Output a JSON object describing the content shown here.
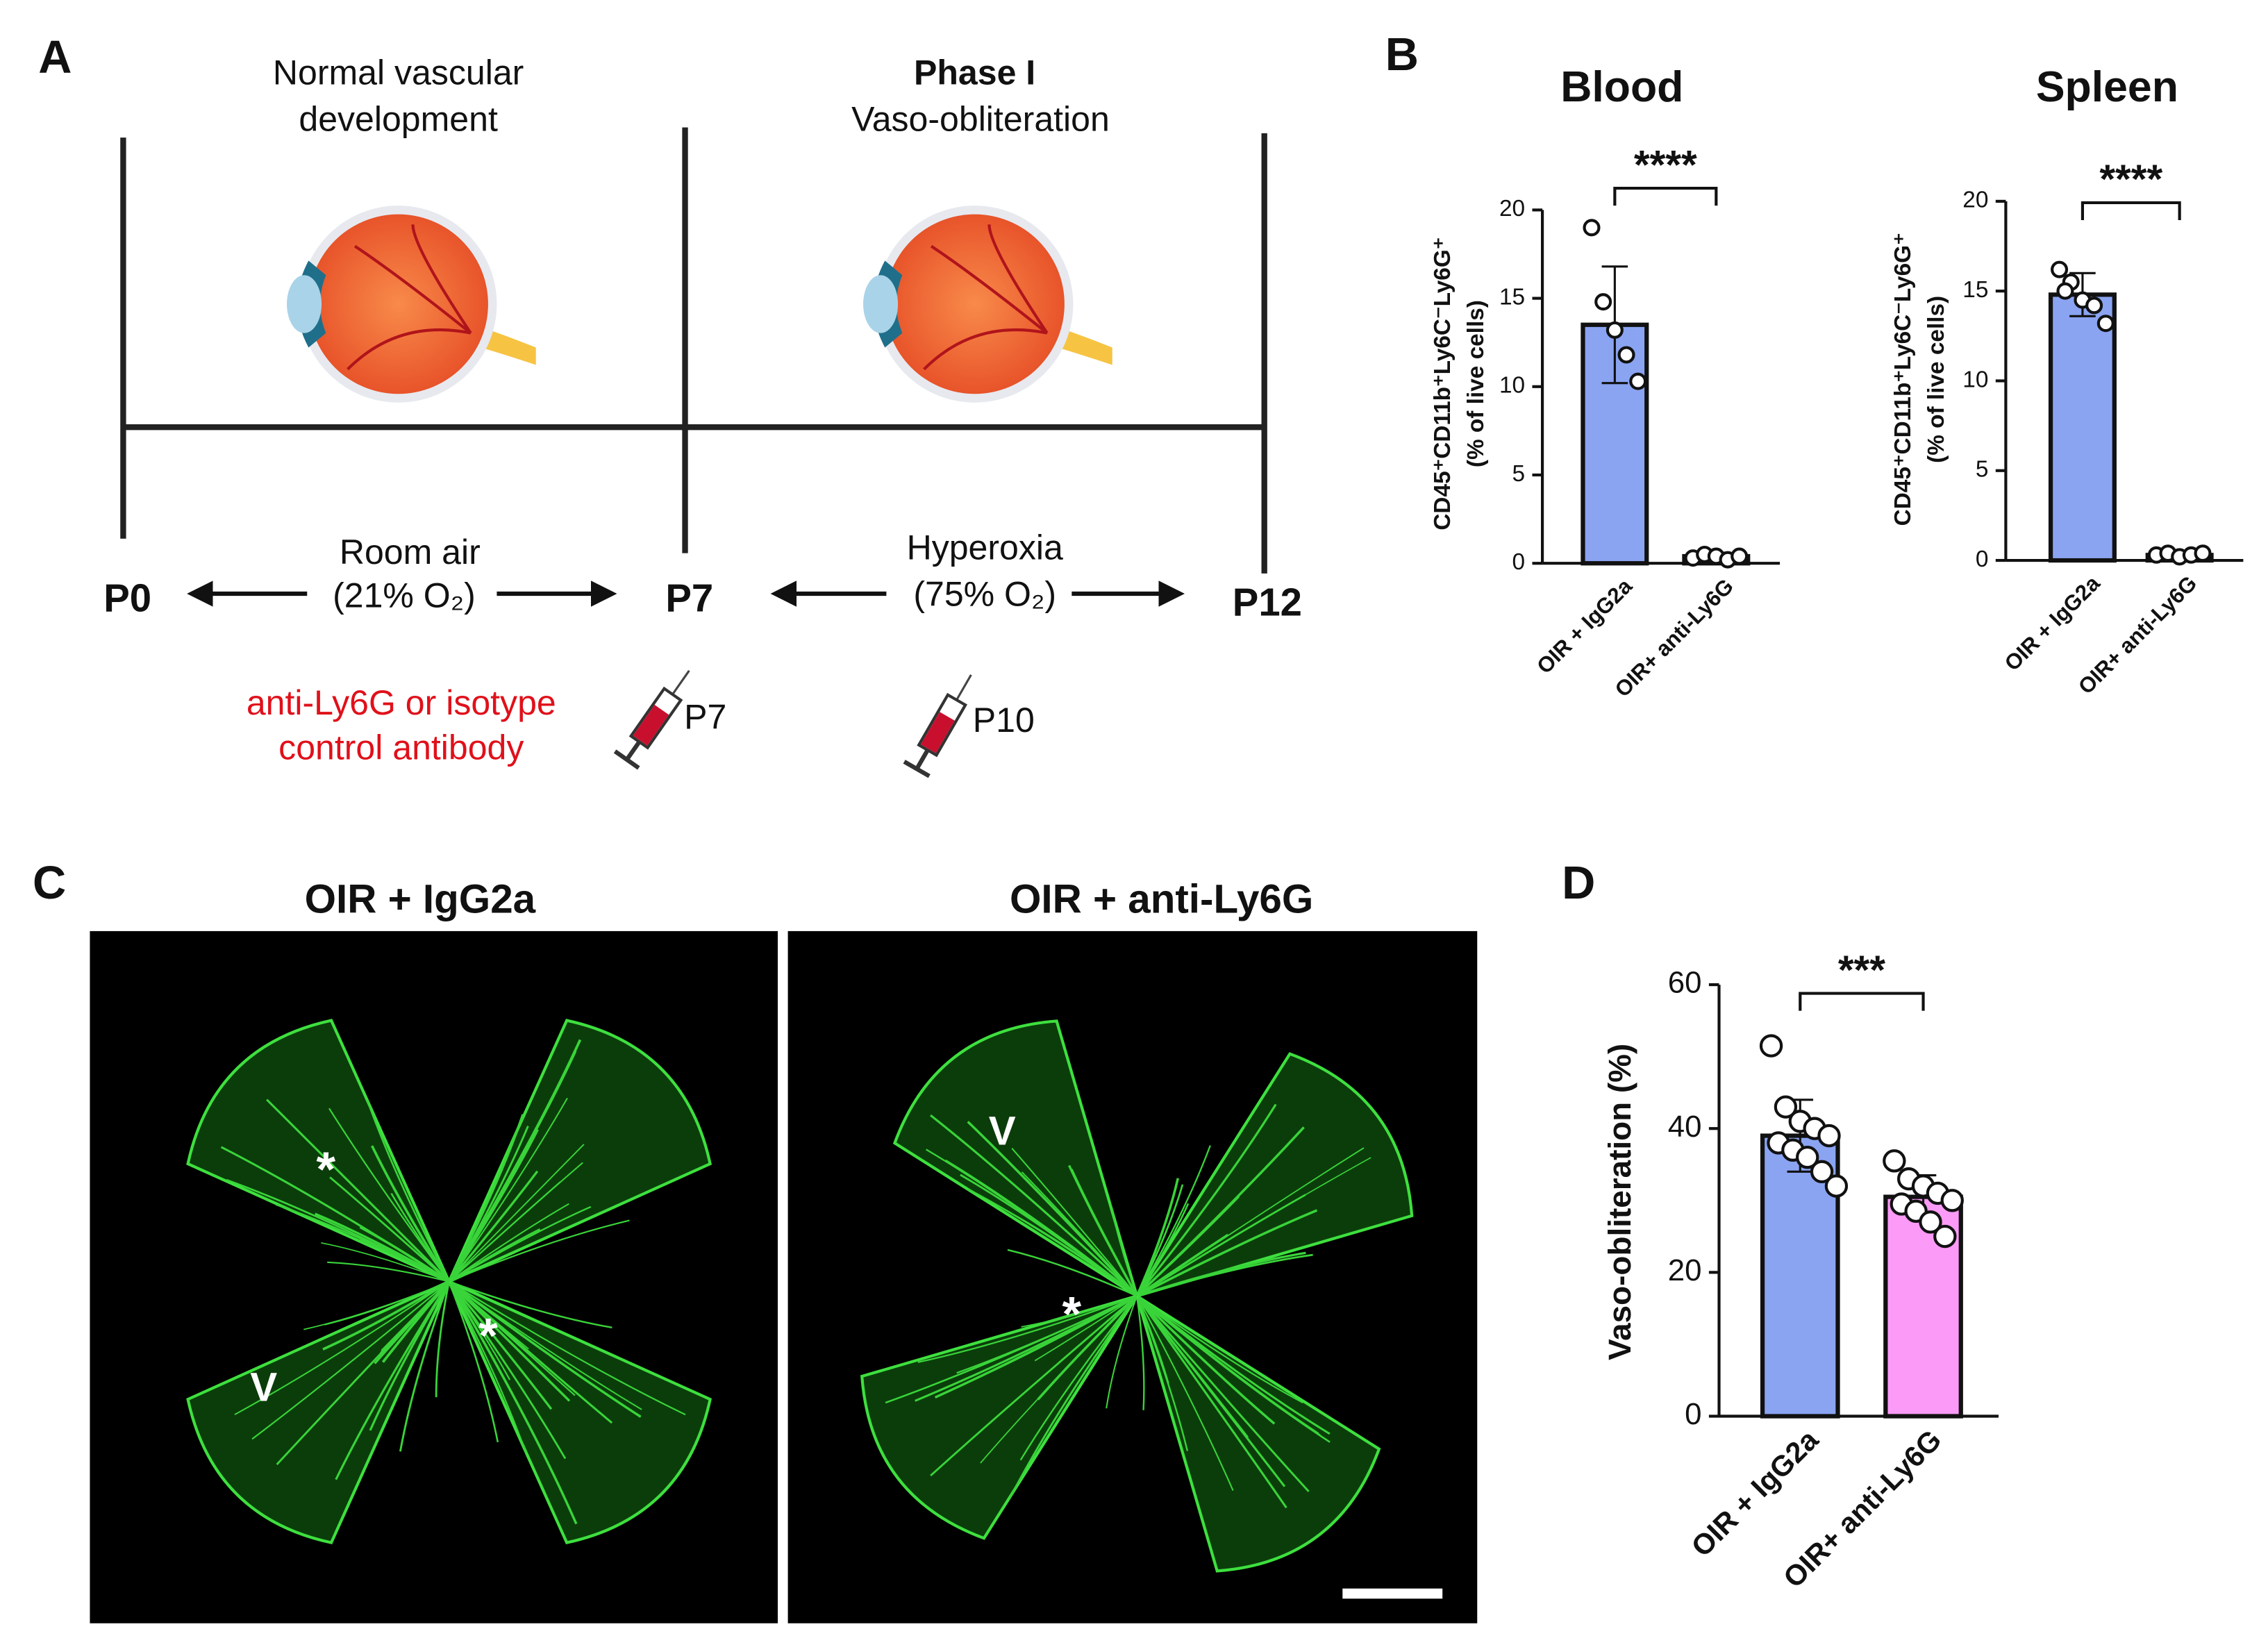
{
  "panels": {
    "a": "A",
    "b": "B",
    "c": "C",
    "d": "D"
  },
  "panel_a": {
    "left_heading": [
      "Normal vascular",
      "development"
    ],
    "right_heading": [
      "Phase I",
      "Vaso-obliteration"
    ],
    "timepoints": [
      "P0",
      "P7",
      "P12"
    ],
    "left_condition": [
      "Room air",
      "(21% O₂)"
    ],
    "right_condition": [
      "Hyperoxia",
      "(75% O₂)"
    ],
    "treatment": [
      "anti-Ly6G or isotype",
      "control antibody"
    ],
    "injections": [
      "P7",
      "P10"
    ]
  },
  "panel_c": {
    "titles": [
      "OIR + IgG2a",
      "OIR + anti-Ly6G"
    ],
    "left_marks": [
      "*",
      "*",
      "V"
    ],
    "right_marks": [
      "V",
      "*"
    ]
  },
  "chart_data": [
    {
      "type": "bar",
      "title": "Blood",
      "ylabel": [
        "CD45⁺CD11b⁺Ly6C⁻Ly6G⁺",
        "(% of live cells)"
      ],
      "categories": [
        "OIR + IgG2a",
        "OIR+ anti-Ly6G"
      ],
      "values": [
        13.5,
        0.4
      ],
      "errors": [
        3.3,
        0.2
      ],
      "points": [
        [
          19.0,
          14.8,
          13.2,
          11.8,
          10.3
        ],
        [
          0.3,
          0.5,
          0.4,
          0.2,
          0.4
        ]
      ],
      "colors": [
        "#8aa4f2",
        "#8aa4f2"
      ],
      "significance": "****",
      "ylim": [
        0,
        20
      ],
      "yticks": [
        0,
        5,
        10,
        15,
        20
      ]
    },
    {
      "type": "bar",
      "title": "Spleen",
      "ylabel": [
        "CD45⁺CD11b⁺Ly6C⁻Ly6G⁺",
        "(% of live cells)"
      ],
      "categories": [
        "OIR + IgG2a",
        "OIR+ anti-Ly6G"
      ],
      "values": [
        14.8,
        0.3
      ],
      "errors": [
        1.2,
        0.1
      ],
      "points": [
        [
          16.2,
          15.5,
          14.5,
          14.2,
          13.2,
          15.0
        ],
        [
          0.3,
          0.4,
          0.2,
          0.3,
          0.4
        ]
      ],
      "colors": [
        "#8aa4f2",
        "#8aa4f2"
      ],
      "significance": "****",
      "ylim": [
        0,
        20
      ],
      "yticks": [
        0,
        5,
        10,
        15,
        20
      ]
    },
    {
      "type": "bar",
      "ylabel": [
        "Vaso-obliteration (%)"
      ],
      "categories": [
        "OIR + IgG2a",
        "OIR+ anti-Ly6G"
      ],
      "values": [
        39,
        30.5
      ],
      "errors": [
        5,
        3
      ],
      "points": [
        [
          51.5,
          43,
          41,
          40,
          39,
          38,
          37,
          36,
          34,
          32
        ],
        [
          35.5,
          33,
          32,
          31,
          30,
          29.5,
          28.5,
          27,
          25
        ]
      ],
      "colors": [
        "#8aa4f2",
        "#fb9af7"
      ],
      "significance": "***",
      "ylim": [
        0,
        60
      ],
      "yticks": [
        0,
        20,
        40,
        60
      ]
    }
  ]
}
